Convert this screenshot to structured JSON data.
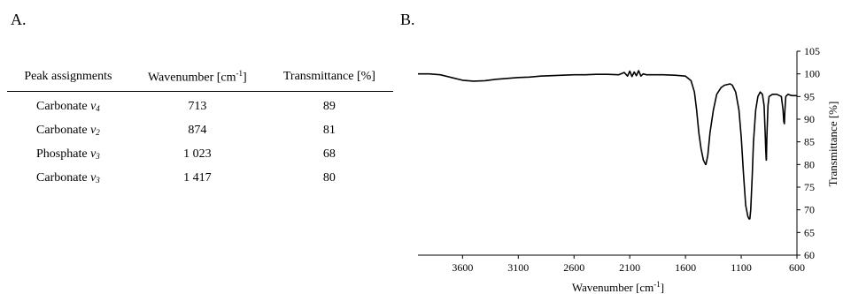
{
  "panels": {
    "a_label": "A.",
    "b_label": "B."
  },
  "table": {
    "headers": {
      "assignment": "Peak assignments",
      "wavenumber_prefix": "Wavenumber [cm",
      "wavenumber_sup": "-1",
      "wavenumber_suffix": "]",
      "transmittance": "Transmittance [%]"
    },
    "rows": [
      {
        "name": "Carbonate ",
        "sym": "v",
        "sub": "4",
        "wavenumber": "713",
        "transmittance": "89"
      },
      {
        "name": "Carbonate ",
        "sym": "v",
        "sub": "2",
        "wavenumber": "874",
        "transmittance": "81"
      },
      {
        "name": "Phosphate ",
        "sym": "v",
        "sub": "3",
        "wavenumber": "1 023",
        "transmittance": "68"
      },
      {
        "name": "Carbonate ",
        "sym": "v",
        "sub": "3",
        "wavenumber": "1 417",
        "transmittance": "80"
      }
    ]
  },
  "chart_data": {
    "type": "line",
    "xlabel_prefix": "Wavenumber [cm",
    "xlabel_sup": "-1",
    "xlabel_suffix": "]",
    "ylabel": "Transmittance [%]",
    "xlim": [
      4000,
      600
    ],
    "ylim": [
      60,
      105
    ],
    "x_ticks": [
      3600,
      3100,
      2600,
      2100,
      1600,
      1100,
      600
    ],
    "y_ticks": [
      60,
      65,
      70,
      75,
      80,
      85,
      90,
      95,
      100,
      105
    ],
    "grid": false,
    "series": [
      {
        "x": [
          4000,
          3900,
          3800,
          3700,
          3600,
          3500,
          3400,
          3300,
          3200,
          3100,
          3000,
          2900,
          2800,
          2700,
          2600,
          2500,
          2400,
          2300,
          2200,
          2150,
          2120,
          2100,
          2080,
          2060,
          2040,
          2020,
          2000,
          1980,
          1950,
          1900,
          1800,
          1700,
          1600,
          1550,
          1520,
          1500,
          1480,
          1460,
          1440,
          1420,
          1417,
          1400,
          1380,
          1350,
          1320,
          1280,
          1250,
          1200,
          1180,
          1150,
          1120,
          1100,
          1080,
          1060,
          1040,
          1030,
          1023,
          1015,
          1000,
          990,
          970,
          950,
          930,
          910,
          895,
          885,
          880,
          876,
          874,
          870,
          860,
          850,
          820,
          780,
          740,
          725,
          718,
          713,
          708,
          700,
          680,
          660,
          640,
          620,
          600
        ],
        "y": [
          100.0,
          100.0,
          99.8,
          99.2,
          98.6,
          98.4,
          98.5,
          98.8,
          99.0,
          99.2,
          99.3,
          99.5,
          99.6,
          99.7,
          99.8,
          99.8,
          99.9,
          99.9,
          99.8,
          100.3,
          99.5,
          100.6,
          99.4,
          100.4,
          99.6,
          100.7,
          99.5,
          100.0,
          99.8,
          99.8,
          99.8,
          99.7,
          99.5,
          98.5,
          96.0,
          92.0,
          87.0,
          83.5,
          81.0,
          80.0,
          80.0,
          82.0,
          87.0,
          92.0,
          95.5,
          97.0,
          97.5,
          97.8,
          97.5,
          96.0,
          92.0,
          86.0,
          78.0,
          71.0,
          68.5,
          68.0,
          68.0,
          70.0,
          78.0,
          85.0,
          92.0,
          95.0,
          96.0,
          95.5,
          93.0,
          87.0,
          83.0,
          81.0,
          81.0,
          86.0,
          93.0,
          95.0,
          95.5,
          95.5,
          95.0,
          92.0,
          89.5,
          89.0,
          92.0,
          95.0,
          95.5,
          95.3,
          95.2,
          95.2,
          95.2
        ]
      }
    ]
  }
}
